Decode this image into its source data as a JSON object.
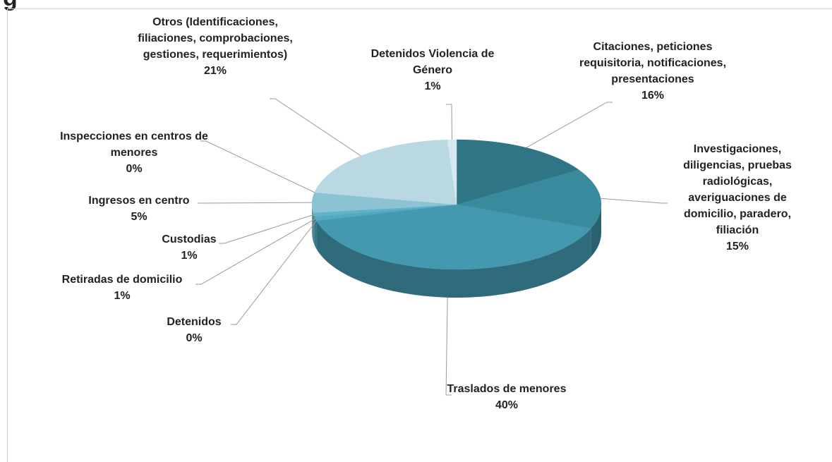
{
  "chart_data": {
    "type": "pie",
    "title": "g",
    "categories": [
      "Citaciones, peticiones requisitoria, notificaciones, presentaciones",
      "Investigaciones, diligencias, pruebas radiológicas, averiguaciones de domicilio, paradero, filiación",
      "Traslados de menores",
      "Detenidos",
      "Retiradas de domicilio",
      "Custodias",
      "Ingresos en centro",
      "Inspecciones en centros de menores",
      "Otros (Identificaciones, filiaciones, comprobaciones, gestiones, requerimientos)",
      "Detenidos Violencia de Género"
    ],
    "values": [
      16,
      15,
      40,
      0,
      1,
      1,
      5,
      0,
      21,
      1
    ],
    "value_labels": [
      "16%",
      "15%",
      "40%",
      "0%",
      "1%",
      "1%",
      "5%",
      "0%",
      "21%",
      "1%"
    ],
    "colors": [
      "#2f7586",
      "#3a8a9d",
      "#4499b1",
      "#4aa2b9",
      "#52a9c0",
      "#62b2c7",
      "#8bc3d3",
      "#a6d0dc",
      "#b9d8e1",
      "#d6e9ef"
    ]
  }
}
